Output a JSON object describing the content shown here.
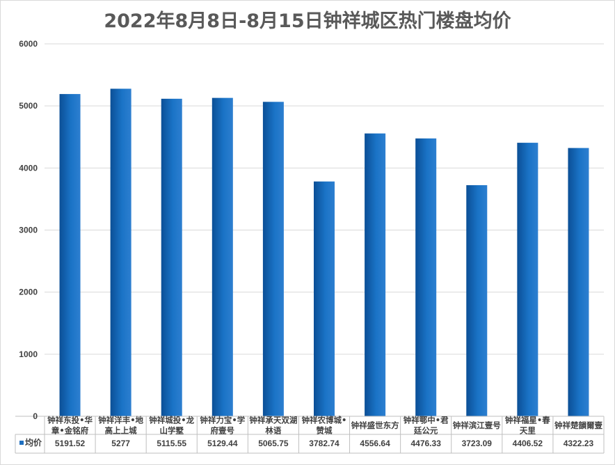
{
  "chart_data": {
    "type": "bar",
    "title": "2022年8月8日-8月15日钟祥城区热门楼盘均价",
    "categories": [
      [
        "钟祥东投•华",
        "章•金铭府"
      ],
      [
        "钟祥洋丰•地",
        "高上上城"
      ],
      [
        "钟祥城投•龙",
        "山学墅"
      ],
      [
        "钟祥力宝•学",
        "府壹号"
      ],
      [
        "钟祥承天双湖",
        "林语"
      ],
      [
        "钟祥农博城•",
        "赞城"
      ],
      [
        "钟祥盛世东方"
      ],
      [
        "钟祥鄂中•君",
        "廷公元"
      ],
      [
        "钟祥滨江壹号"
      ],
      [
        "钟祥福星•春",
        "天里"
      ],
      [
        "钟祥楚韻爾壹"
      ]
    ],
    "series": [
      {
        "name": "均价",
        "color": "#1f6fbf",
        "values": [
          5191.52,
          5277,
          5115.55,
          5129.44,
          5065.75,
          3782.74,
          4556.64,
          4476.33,
          3723.09,
          4406.52,
          4322.23
        ],
        "value_labels": [
          "5191.52",
          "5277",
          "5115.55",
          "5129.44",
          "5065.75",
          "3782.74",
          "4556.64",
          "4476.33",
          "3723.09",
          "4406.52",
          "4322.23"
        ]
      }
    ],
    "ylim": [
      0,
      6000
    ],
    "yticks": [
      0,
      1000,
      2000,
      3000,
      4000,
      5000,
      6000
    ],
    "grid": true,
    "legend": "data-table"
  }
}
